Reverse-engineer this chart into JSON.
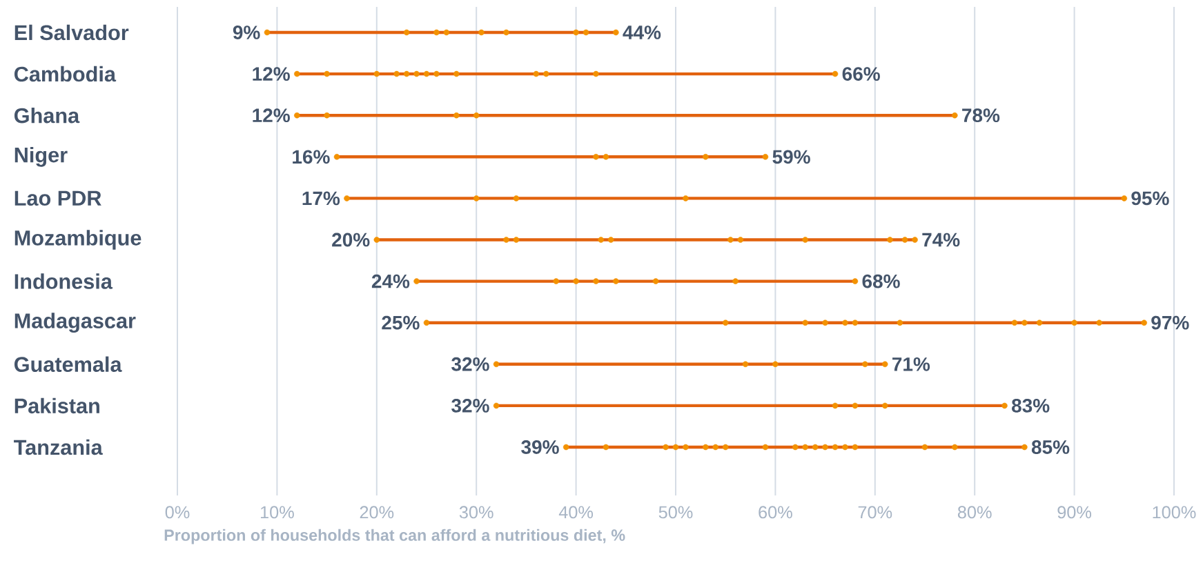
{
  "chart_data": {
    "type": "bar",
    "orientation": "horizontal",
    "xlabel": "Proportion of households that can afford a nutritious diet, %",
    "categories": [
      "El Salvador",
      "Cambodia",
      "Ghana",
      "Niger",
      "Lao PDR",
      "Mozambique",
      "Indonesia",
      "Madagascar",
      "Guatemala",
      "Pakistan",
      "Tanzania"
    ],
    "xlim": [
      0,
      100
    ],
    "xticks": [
      {
        "value": 0,
        "label": "0%"
      },
      {
        "value": 10,
        "label": "10%"
      },
      {
        "value": 20,
        "label": "20%"
      },
      {
        "value": 30,
        "label": "30%"
      },
      {
        "value": 40,
        "label": "40%"
      },
      {
        "value": 50,
        "label": "50%"
      },
      {
        "value": 60,
        "label": "60%"
      },
      {
        "value": 70,
        "label": "70%"
      },
      {
        "value": 80,
        "label": "80%"
      },
      {
        "value": 90,
        "label": "90%"
      },
      {
        "value": 100,
        "label": "100%"
      }
    ],
    "grid": "x",
    "series": [
      {
        "type": "bar",
        "color": "#e2620e",
        "base": [
          9,
          12,
          12,
          16,
          17,
          20,
          24,
          25,
          32,
          32,
          39
        ],
        "values": [
          35,
          54,
          66,
          43,
          78,
          54,
          44,
          72,
          39,
          51,
          46
        ]
      },
      {
        "type": "scatter",
        "color": "#f39200",
        "x": [
          "El Salvador",
          "El Salvador",
          "El Salvador",
          "El Salvador",
          "El Salvador",
          "El Salvador",
          "El Salvador",
          "El Salvador",
          "El Salvador",
          "Cambodia",
          "Cambodia",
          "Cambodia",
          "Cambodia",
          "Cambodia",
          "Cambodia",
          "Cambodia",
          "Cambodia",
          "Cambodia",
          "Cambodia",
          "Cambodia",
          "Cambodia",
          "Cambodia",
          "Ghana",
          "Ghana",
          "Ghana",
          "Ghana",
          "Ghana",
          "Niger",
          "Niger",
          "Niger",
          "Niger",
          "Niger",
          "Lao PDR",
          "Lao PDR",
          "Lao PDR",
          "Lao PDR",
          "Lao PDR",
          "Mozambique",
          "Mozambique",
          "Mozambique",
          "Mozambique",
          "Mozambique",
          "Mozambique",
          "Mozambique",
          "Mozambique",
          "Mozambique",
          "Mozambique",
          "Mozambique",
          "Indonesia",
          "Indonesia",
          "Indonesia",
          "Indonesia",
          "Indonesia",
          "Indonesia",
          "Indonesia",
          "Indonesia",
          "Madagascar",
          "Madagascar",
          "Madagascar",
          "Madagascar",
          "Madagascar",
          "Madagascar",
          "Madagascar",
          "Madagascar",
          "Madagascar",
          "Madagascar",
          "Madagascar",
          "Madagascar",
          "Madagascar",
          "Guatemala",
          "Guatemala",
          "Guatemala",
          "Guatemala",
          "Guatemala",
          "Pakistan",
          "Pakistan",
          "Pakistan",
          "Pakistan",
          "Pakistan",
          "Tanzania",
          "Tanzania",
          "Tanzania",
          "Tanzania",
          "Tanzania",
          "Tanzania",
          "Tanzania",
          "Tanzania",
          "Tanzania",
          "Tanzania",
          "Tanzania",
          "Tanzania",
          "Tanzania",
          "Tanzania",
          "Tanzania",
          "Tanzania",
          "Tanzania",
          "Tanzania",
          "Tanzania"
        ],
        "values": [
          9,
          23,
          26,
          27,
          30.5,
          33,
          40,
          41,
          44,
          12,
          15,
          20,
          22,
          23,
          24,
          25,
          26,
          28,
          36,
          37,
          42,
          66,
          12,
          15,
          28,
          30,
          78,
          16,
          42,
          43,
          53,
          59,
          17,
          30,
          34,
          51,
          95,
          20,
          33,
          34,
          42.5,
          43.5,
          55.5,
          56.5,
          63,
          71.5,
          73,
          74,
          24,
          38,
          40,
          42,
          44,
          48,
          56,
          68,
          25,
          55,
          63,
          65,
          67,
          68,
          72.5,
          84,
          85,
          86.5,
          90,
          92.5,
          97,
          32,
          57,
          60,
          69,
          71,
          32,
          66,
          68,
          71,
          83,
          39,
          43,
          49,
          50,
          51,
          53,
          54,
          55,
          59,
          62,
          63,
          64,
          65,
          66,
          67,
          68,
          75,
          78,
          85
        ],
        "value_labels": [
          "9%",
          null,
          null,
          null,
          null,
          null,
          null,
          null,
          "44%",
          "12%",
          null,
          null,
          null,
          null,
          null,
          null,
          null,
          null,
          null,
          null,
          null,
          "66%",
          "12%",
          null,
          null,
          null,
          "78%",
          "16%",
          null,
          null,
          null,
          "59%",
          "17%",
          null,
          null,
          null,
          "95%",
          "20%",
          null,
          null,
          null,
          null,
          null,
          null,
          null,
          null,
          null,
          "74%",
          "24%",
          null,
          null,
          null,
          null,
          null,
          null,
          "68%",
          "25%",
          null,
          null,
          null,
          null,
          null,
          null,
          null,
          null,
          null,
          null,
          null,
          "97%",
          "32%",
          null,
          null,
          null,
          "71%",
          "32%",
          null,
          null,
          null,
          "83%",
          "39%",
          null,
          null,
          null,
          null,
          null,
          null,
          null,
          null,
          null,
          null,
          null,
          null,
          null,
          null,
          null,
          null,
          null,
          "85%"
        ]
      }
    ]
  }
}
